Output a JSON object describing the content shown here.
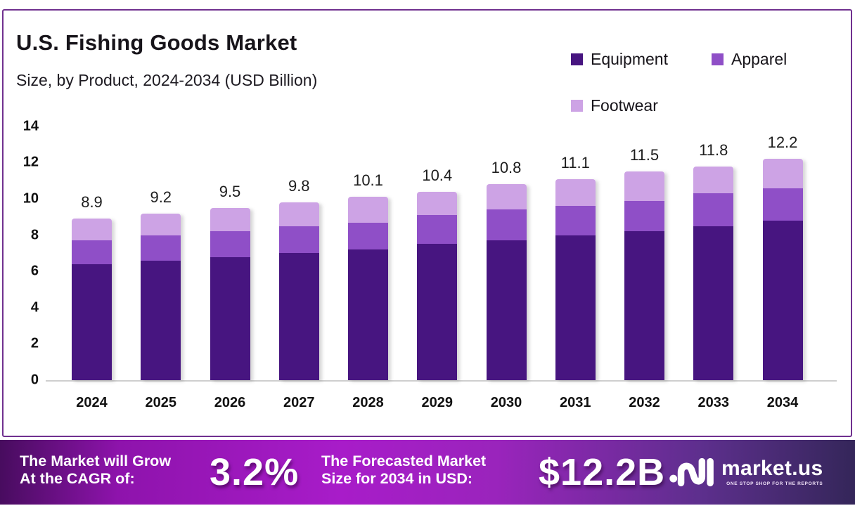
{
  "card": {
    "title": "U.S. Fishing Goods Market",
    "subtitle": "Size, by Product, 2024-2034 (USD Billion)"
  },
  "legend": [
    {
      "label": "Equipment",
      "color": "#471580"
    },
    {
      "label": "Apparel",
      "color": "#8F4FC7"
    },
    {
      "label": "Footwear",
      "color": "#CDA3E5"
    }
  ],
  "chart_data": {
    "type": "bar",
    "stacked": true,
    "title": "U.S. Fishing Goods Market",
    "subtitle": "Size, by Product, 2024-2034 (USD Billion)",
    "categories": [
      "2024",
      "2025",
      "2026",
      "2027",
      "2028",
      "2029",
      "2030",
      "2031",
      "2032",
      "2033",
      "2034"
    ],
    "series": [
      {
        "name": "Equipment",
        "color": "#471580",
        "values": [
          6.4,
          6.6,
          6.8,
          7.0,
          7.2,
          7.5,
          7.7,
          8.0,
          8.2,
          8.5,
          8.8
        ]
      },
      {
        "name": "Apparel",
        "color": "#8F4FC7",
        "values": [
          1.3,
          1.4,
          1.4,
          1.5,
          1.5,
          1.6,
          1.7,
          1.6,
          1.7,
          1.8,
          1.8
        ]
      },
      {
        "name": "Footwear",
        "color": "#CDA3E5",
        "values": [
          1.2,
          1.2,
          1.3,
          1.3,
          1.4,
          1.3,
          1.4,
          1.5,
          1.6,
          1.5,
          1.6
        ]
      }
    ],
    "totals": [
      8.9,
      9.2,
      9.5,
      9.8,
      10.1,
      10.4,
      10.8,
      11.1,
      11.5,
      11.8,
      12.2
    ],
    "xlabel": "",
    "ylabel": "",
    "ylim": [
      0,
      14
    ],
    "yticks": [
      0,
      2,
      4,
      6,
      8,
      10,
      12,
      14
    ],
    "grid": false,
    "legend_position": "top-right",
    "bar_value_labels": "totals-above-bars"
  },
  "banner": {
    "cagr_label_line1": "The Market will Grow",
    "cagr_label_line2": "At the CAGR of:",
    "cagr_value": "3.2%",
    "forecast_label_line1": "The Forecasted Market",
    "forecast_label_line2": "Size for 2034 in USD:",
    "forecast_value": "$12.2B",
    "logo_text": "market.us",
    "logo_tagline": "ONE STOP SHOP FOR THE REPORTS"
  },
  "colors": {
    "card_border": "#70308F",
    "axis_line": "#cfcfcf",
    "banner_gradient_left": "#470C5E",
    "banner_gradient_mid": "#A81CC9",
    "banner_gradient_right": "#342659",
    "text_dark": "#17141a",
    "text_light": "#ffffff"
  }
}
